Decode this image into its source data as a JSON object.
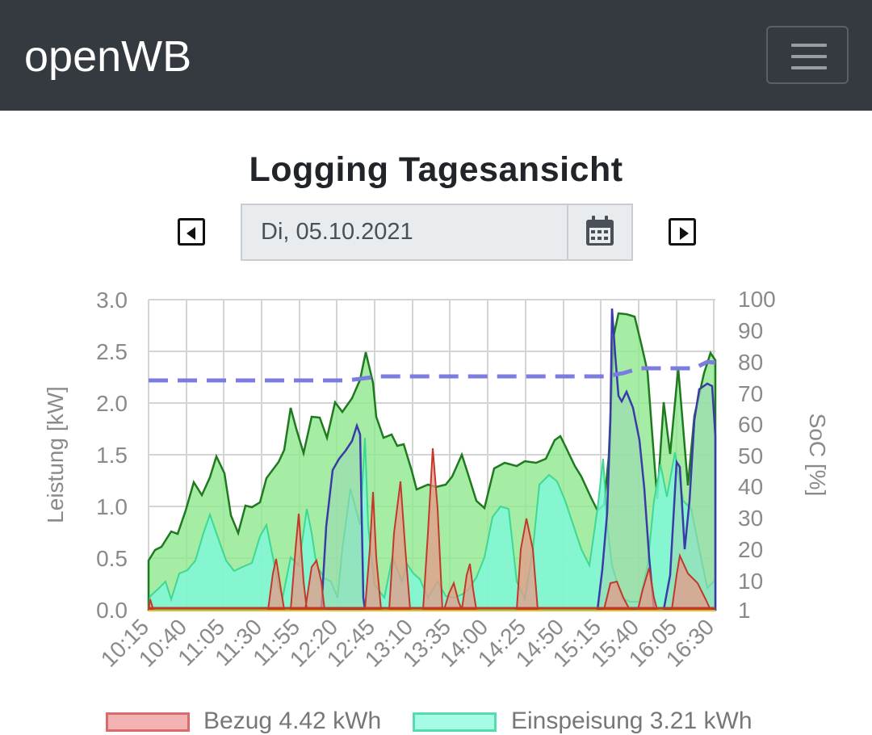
{
  "navbar": {
    "brand": "openWB",
    "menu_icon": "hamburger-icon"
  },
  "page": {
    "title": "Logging Tagesansicht"
  },
  "date_picker": {
    "value": "Di, 05.10.2021",
    "prev_icon": "caret-left-icon",
    "next_icon": "caret-right-icon",
    "calendar_icon": "calendar-icon"
  },
  "chart_data": {
    "type": "area",
    "x": [
      "10:15",
      "10:40",
      "11:05",
      "11:30",
      "11:55",
      "12:20",
      "12:45",
      "13:10",
      "13:35",
      "14:00",
      "14:25",
      "14:50",
      "15:15",
      "15:40",
      "16:05",
      "16:30"
    ],
    "ylabel": "Leistung [kW]",
    "ylim": [
      0,
      3.0
    ],
    "yticks": [
      "0.0",
      "0.5",
      "1.0",
      "1.5",
      "2.0",
      "2.5",
      "3.0"
    ],
    "y2label": "SoC [%]",
    "y2ticks": [
      "1",
      "10",
      "20",
      "30",
      "40",
      "50",
      "60",
      "70",
      "80",
      "90",
      "100"
    ],
    "grid": true,
    "colors": {
      "pv": "#1f7a1f",
      "pv_fill": "#8fe88f",
      "einspeisung": "#3ed893",
      "einspeisung_fill": "#7ff7d6",
      "bezug": "#c0392b",
      "bezug_fill": "#e89a8a",
      "ladepunkt": "#3a3aa8",
      "soc": "#7b7be0"
    },
    "series": [
      {
        "name": "Bezug",
        "legend": "Bezug 4.42 kWh"
      },
      {
        "name": "Einspeisung",
        "legend": "Einspeisung 3.21 kWh"
      }
    ]
  }
}
